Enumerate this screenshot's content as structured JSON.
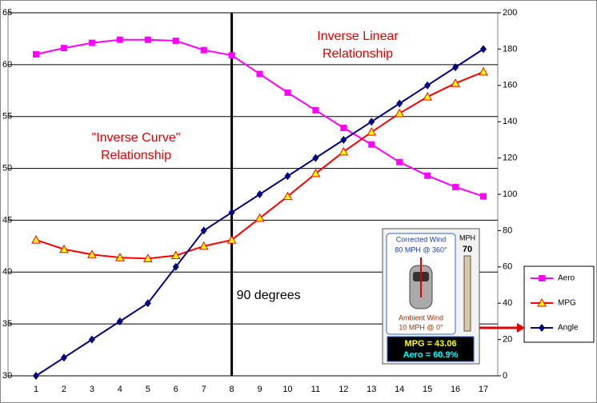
{
  "chart_data": {
    "type": "line",
    "categories": [
      "1",
      "2",
      "3",
      "4",
      "5",
      "6",
      "7",
      "8",
      "9",
      "10",
      "11",
      "12",
      "13",
      "14",
      "15",
      "16",
      "17"
    ],
    "series": [
      {
        "name": "Aero",
        "color": "#ff00ff",
        "marker": "square",
        "axis": "y",
        "values": [
          61.0,
          61.6,
          62.1,
          62.4,
          62.4,
          62.3,
          61.4,
          60.9,
          59.1,
          57.3,
          55.6,
          53.9,
          52.3,
          50.6,
          49.3,
          48.2,
          47.3
        ]
      },
      {
        "name": "MPG",
        "color": "#ff0000",
        "marker": "triangle",
        "axis": "y",
        "values": [
          43.1,
          42.2,
          41.7,
          41.4,
          41.3,
          41.6,
          42.5,
          43.1,
          45.2,
          47.3,
          49.5,
          51.6,
          53.5,
          55.3,
          56.9,
          58.2,
          59.3
        ]
      },
      {
        "name": "Angle",
        "color": "#000080",
        "marker": "diamond",
        "axis": "y2",
        "values": [
          0,
          10,
          20,
          30,
          40,
          60,
          80,
          90,
          100,
          110,
          120,
          130,
          140,
          150,
          160,
          170,
          180
        ]
      }
    ],
    "ylim": [
      30,
      65
    ],
    "yticks": [
      30,
      35,
      40,
      45,
      50,
      55,
      60,
      65
    ],
    "y2lim": [
      0,
      200
    ],
    "y2ticks": [
      0,
      20,
      40,
      60,
      80,
      100,
      120,
      140,
      160,
      180,
      200
    ],
    "grid": true,
    "legend": "right",
    "vline": {
      "category": 7,
      "label": "90 degrees"
    },
    "annotations": [
      {
        "lines": [
          "Inverse Linear",
          "Relationship"
        ]
      },
      {
        "lines": [
          "\"Inverse Curve\"",
          "Relationship"
        ]
      }
    ]
  },
  "inset": {
    "top_label": "Corrected Wind",
    "top_value": "80 MPH @ 360°",
    "bottom_label": "Ambient Wind",
    "bottom_value": "10 MPH @ 0°",
    "speed_unit": "MPH",
    "speed": "70",
    "mpg": "MPG = 43.06",
    "aero": "Aero = 60.9%"
  }
}
